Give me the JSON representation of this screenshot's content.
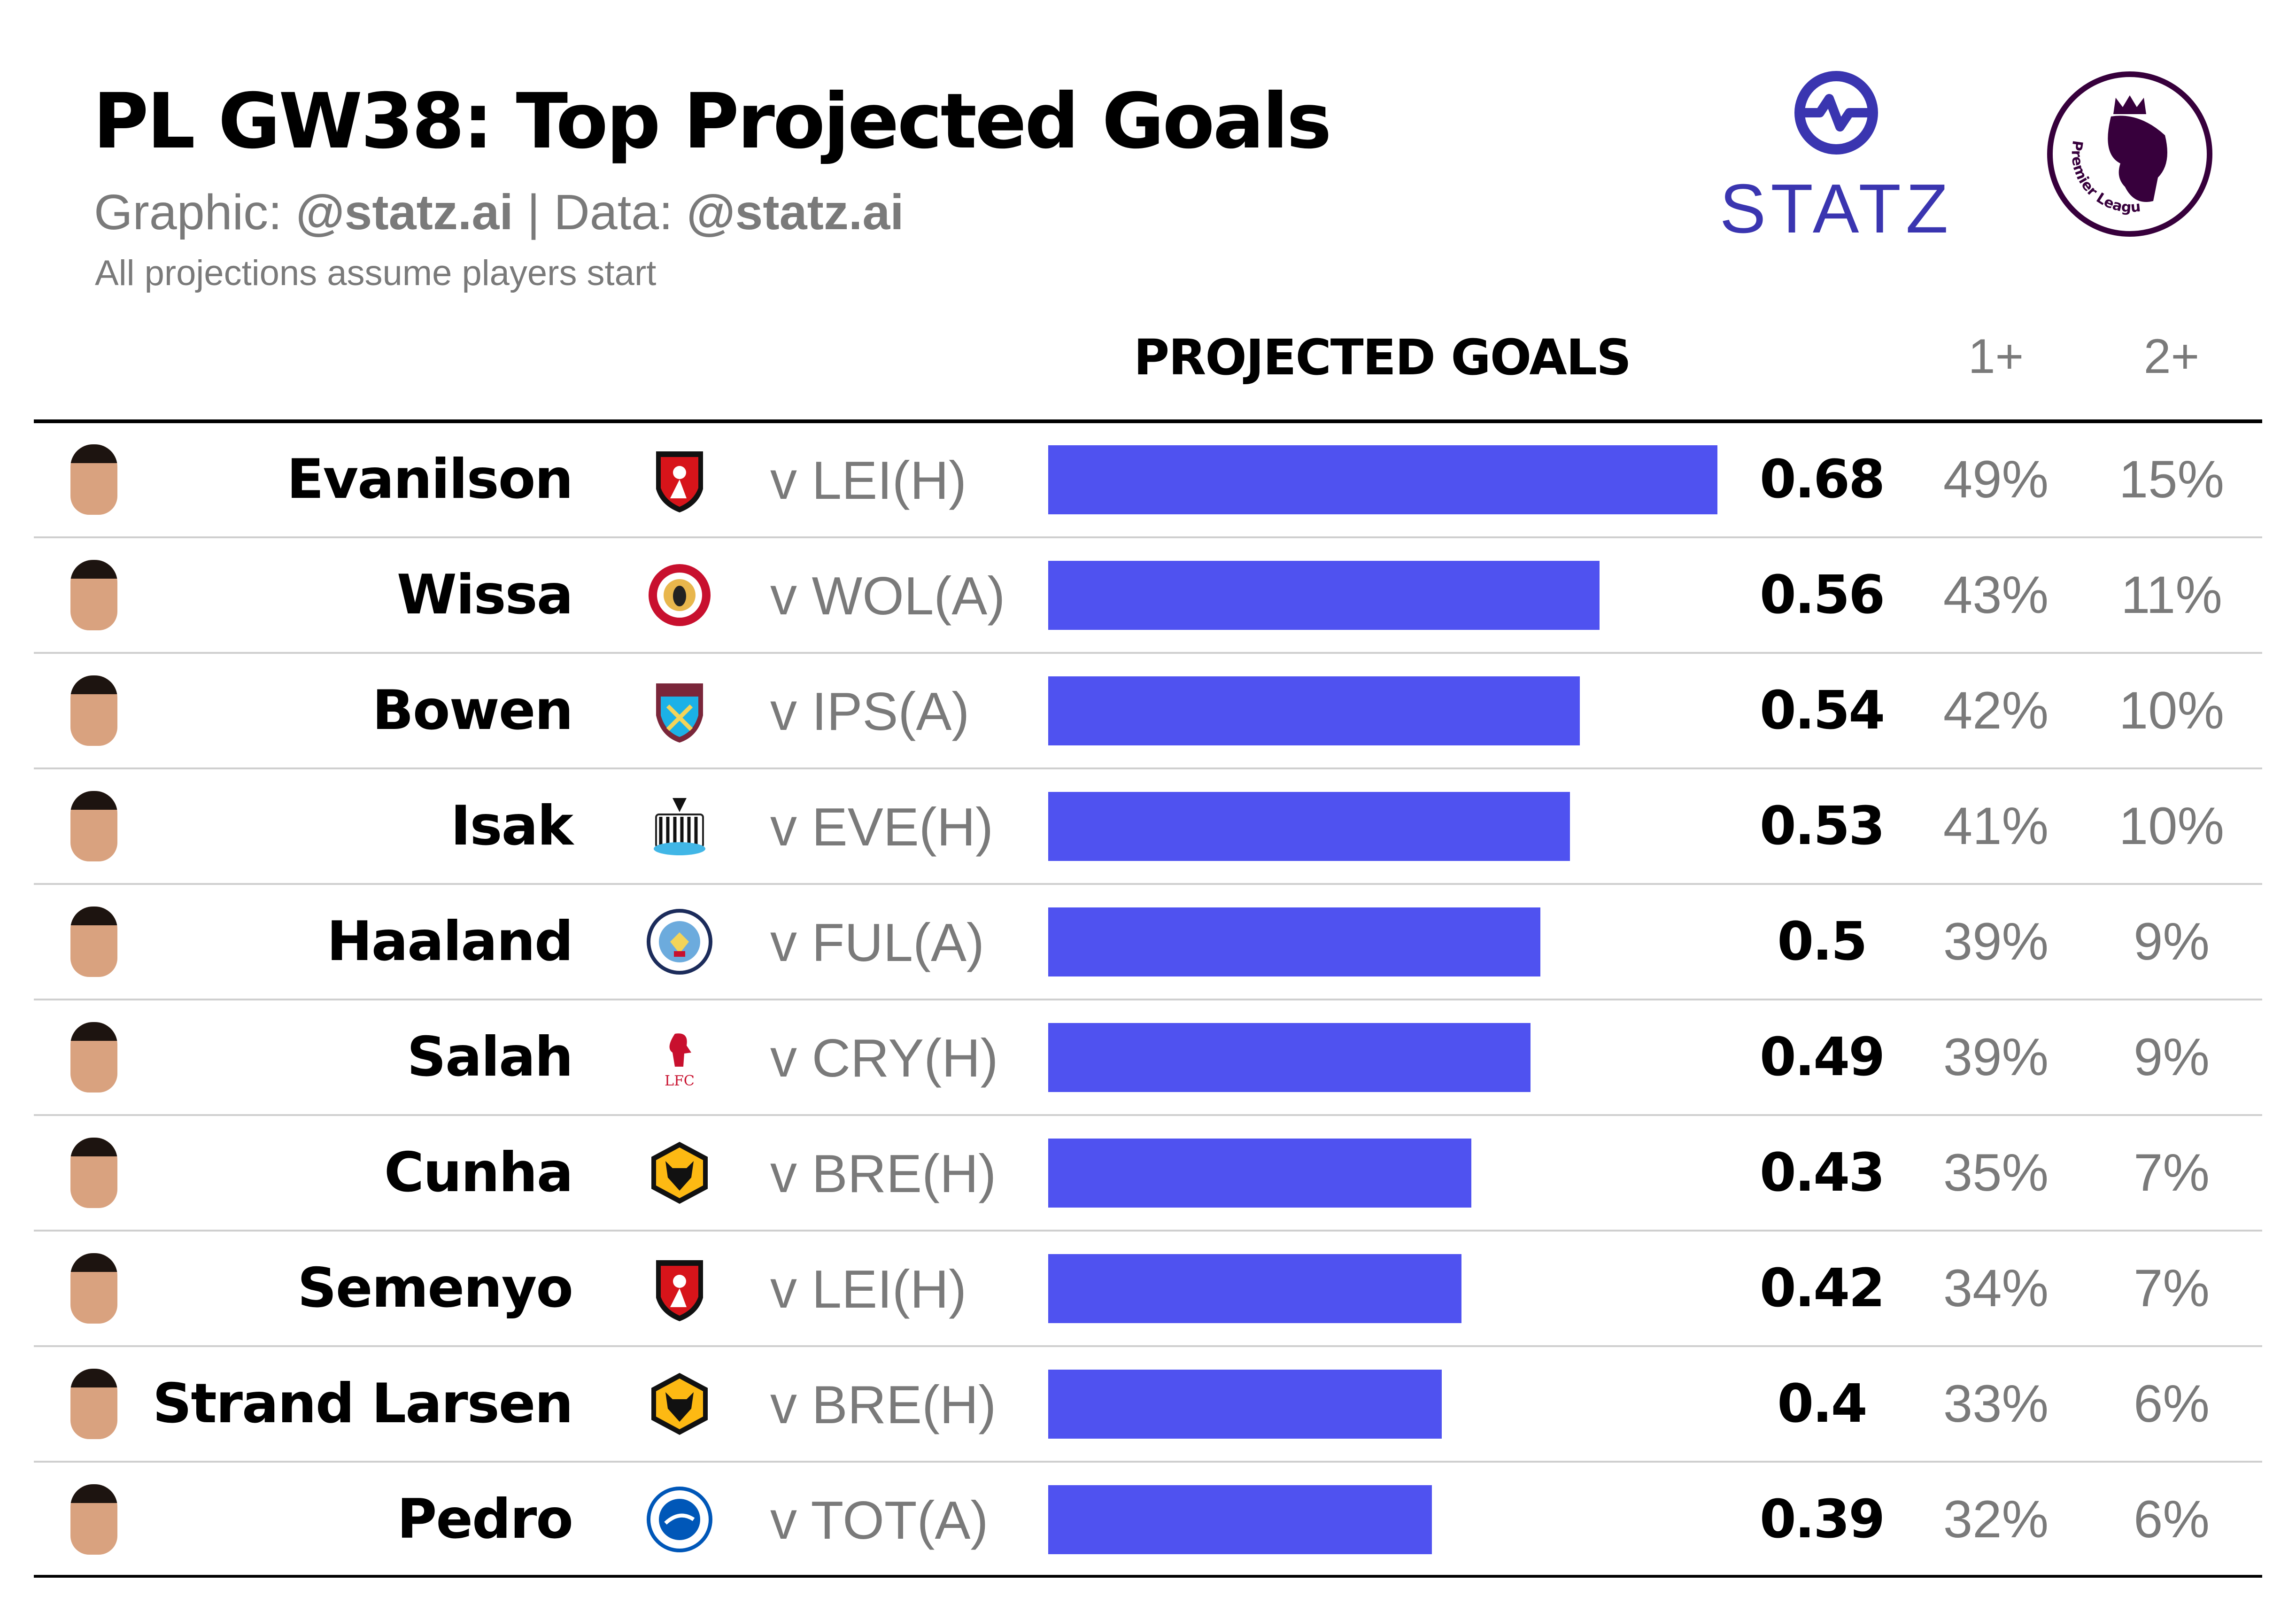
{
  "header": {
    "title": "PL GW38: Top Projected Goals",
    "subtitle_graphic_label": "Graphic: ",
    "subtitle_graphic_handle": "@statz.ai",
    "subtitle_separator": " | ",
    "subtitle_data_label": "Data: ",
    "subtitle_data_handle": "@statz.ai",
    "note": "All projections assume players start",
    "statz_logo_text": "STATZ",
    "pl_logo_text": "Premier League"
  },
  "colors": {
    "bar": "#4f52f0",
    "statz": "#3a35b0",
    "premier_league": "#37003c"
  },
  "chart_data": {
    "type": "bar",
    "orientation": "horizontal",
    "columns": {
      "projected": "PROJECTED GOALS",
      "one_plus": "1+",
      "two_plus": "2+"
    },
    "xlim": [
      0,
      0.68
    ],
    "rows": [
      {
        "player": "Evanilson",
        "club": "Bournemouth",
        "badge": "bournemouth",
        "opponent": "v LEI(H)",
        "projected": 0.68,
        "projected_label": "0.68",
        "one_plus": "49%",
        "two_plus": "15%"
      },
      {
        "player": "Wissa",
        "club": "Brentford",
        "badge": "brentford",
        "opponent": "v WOL(A)",
        "projected": 0.56,
        "projected_label": "0.56",
        "one_plus": "43%",
        "two_plus": "11%"
      },
      {
        "player": "Bowen",
        "club": "West Ham",
        "badge": "westham",
        "opponent": "v IPS(A)",
        "projected": 0.54,
        "projected_label": "0.54",
        "one_plus": "42%",
        "two_plus": "10%"
      },
      {
        "player": "Isak",
        "club": "Newcastle",
        "badge": "newcastle",
        "opponent": "v EVE(H)",
        "projected": 0.53,
        "projected_label": "0.53",
        "one_plus": "41%",
        "two_plus": "10%"
      },
      {
        "player": "Haaland",
        "club": "Man City",
        "badge": "mancity",
        "opponent": "v FUL(A)",
        "projected": 0.5,
        "projected_label": "0.5",
        "one_plus": "39%",
        "two_plus": "9%"
      },
      {
        "player": "Salah",
        "club": "Liverpool",
        "badge": "liverpool",
        "opponent": "v CRY(H)",
        "projected": 0.49,
        "projected_label": "0.49",
        "one_plus": "39%",
        "two_plus": "9%"
      },
      {
        "player": "Cunha",
        "club": "Wolves",
        "badge": "wolves",
        "opponent": "v BRE(H)",
        "projected": 0.43,
        "projected_label": "0.43",
        "one_plus": "35%",
        "two_plus": "7%"
      },
      {
        "player": "Semenyo",
        "club": "Bournemouth",
        "badge": "bournemouth",
        "opponent": "v LEI(H)",
        "projected": 0.42,
        "projected_label": "0.42",
        "one_plus": "34%",
        "two_plus": "7%"
      },
      {
        "player": "Strand Larsen",
        "club": "Wolves",
        "badge": "wolves",
        "opponent": "v BRE(H)",
        "projected": 0.4,
        "projected_label": "0.4",
        "one_plus": "33%",
        "two_plus": "6%"
      },
      {
        "player": "Pedro",
        "club": "Brighton",
        "badge": "brighton",
        "opponent": "v TOT(A)",
        "projected": 0.39,
        "projected_label": "0.39",
        "one_plus": "32%",
        "two_plus": "6%"
      }
    ]
  }
}
